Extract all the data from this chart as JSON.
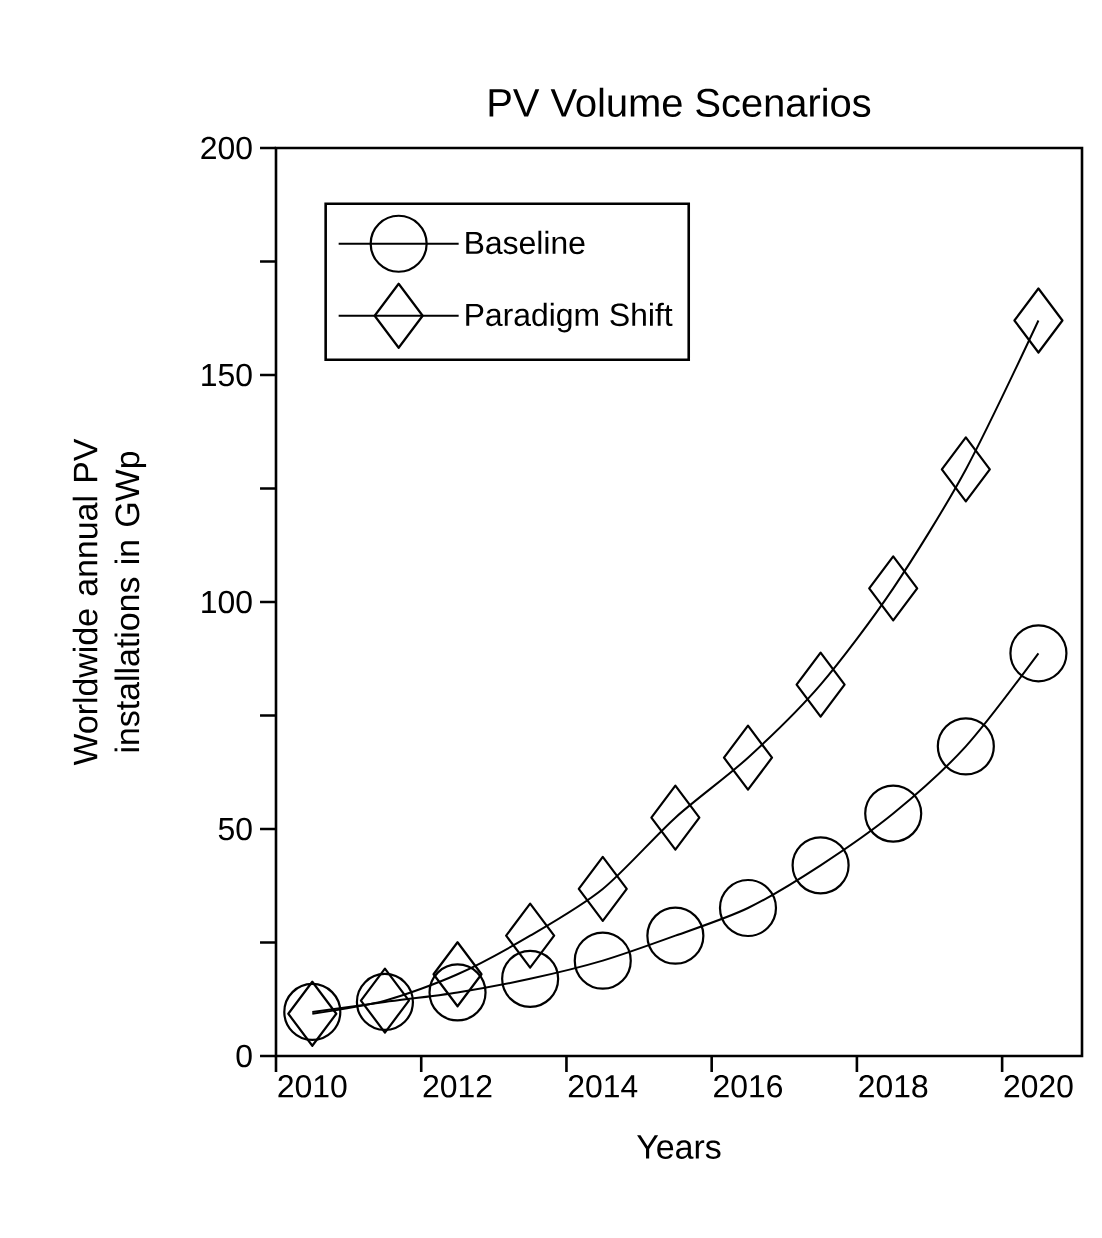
{
  "chart_data": {
    "type": "line",
    "title": "PV Volume Scenarios",
    "xlabel": "Years",
    "ylabel": "Worldwide annual PV installations in GWp",
    "x": [
      2010,
      2011,
      2012,
      2013,
      2014,
      2015,
      2016,
      2017,
      2018,
      2019,
      2020
    ],
    "series": [
      {
        "name": "Baseline",
        "color": "#000000",
        "marker": "circle",
        "values": [
          9.7,
          11.9,
          14,
          17,
          21,
          26.5,
          32.6,
          42,
          53.4,
          68.2,
          88.7
        ]
      },
      {
        "name": "Paradigm Shift",
        "color": "#000000",
        "marker": "diamond",
        "values": [
          9.3,
          12.2,
          18,
          26.5,
          36.8,
          52.5,
          65.7,
          81.8,
          103,
          129.2,
          162
        ]
      }
    ],
    "xlim": [
      2009.5,
      2020.6
    ],
    "ylim": [
      0,
      200
    ],
    "xticks": [
      {
        "value": 2009.5,
        "label": null
      },
      {
        "value": 2010,
        "label": "2010"
      },
      {
        "value": 2011.5,
        "label": null
      },
      {
        "value": 2012,
        "label": "2012"
      },
      {
        "value": 2013.5,
        "label": null
      },
      {
        "value": 2014,
        "label": "2014"
      },
      {
        "value": 2015.5,
        "label": null
      },
      {
        "value": 2016,
        "label": "2016"
      },
      {
        "value": 2017.5,
        "label": null
      },
      {
        "value": 2018,
        "label": "2018"
      },
      {
        "value": 2019.5,
        "label": null
      },
      {
        "value": 2020,
        "label": "2020"
      }
    ],
    "yticks": [
      0,
      {
        "value": 25,
        "label": null
      },
      50,
      {
        "value": 75,
        "label": null
      },
      100,
      {
        "value": 125,
        "label": null
      },
      150,
      {
        "value": 175,
        "label": null
      },
      200
    ],
    "grid": false,
    "legend": "top left",
    "line_style": "solid"
  }
}
